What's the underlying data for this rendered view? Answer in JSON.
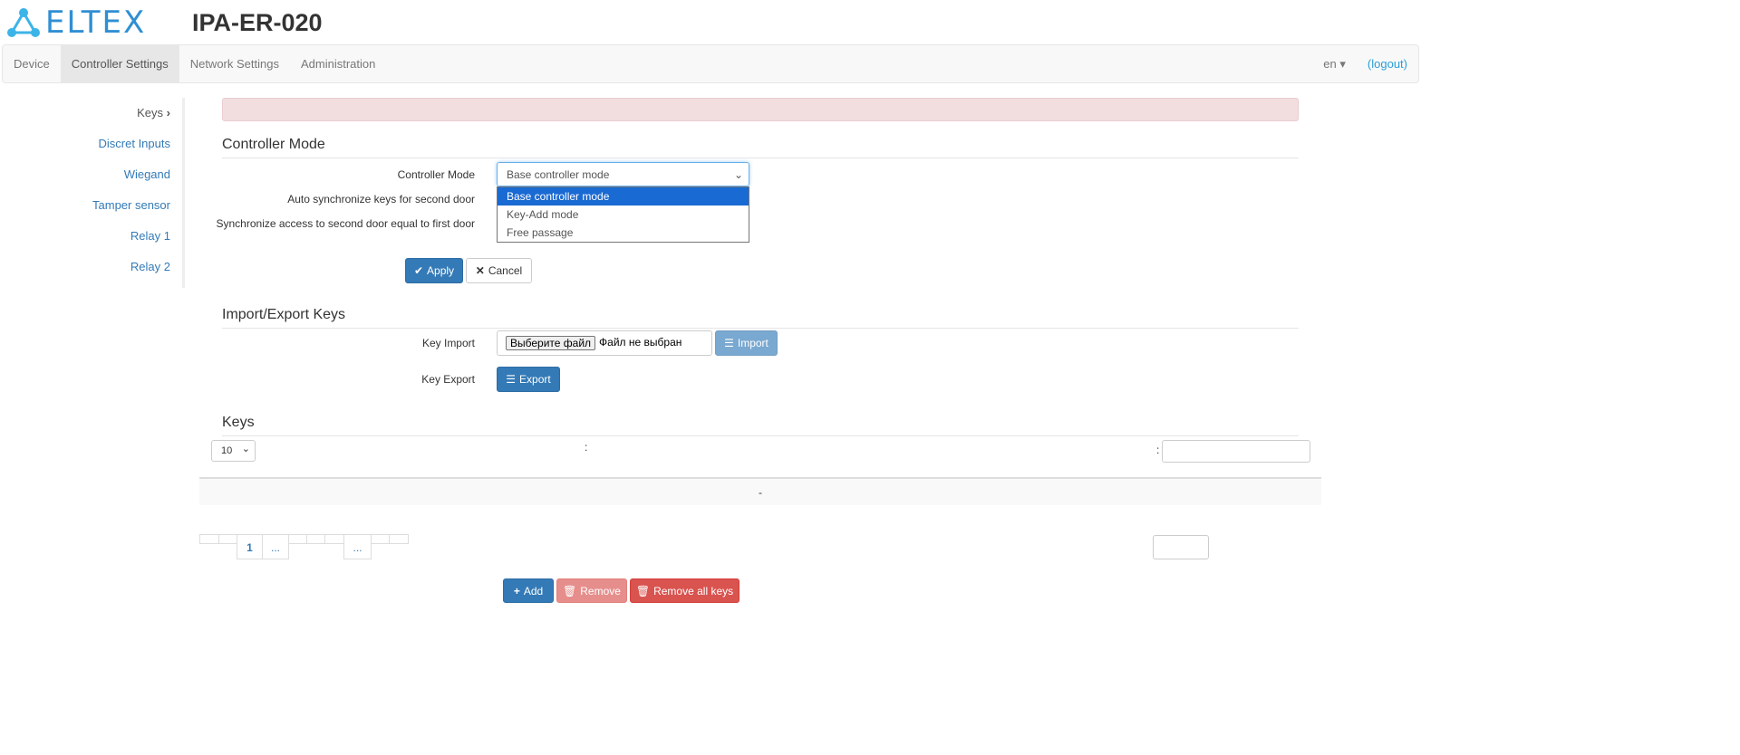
{
  "header": {
    "logo": "ELTEX",
    "device": "IPA-ER-020"
  },
  "nav": {
    "tabs": [
      "Device",
      "Controller Settings",
      "Network Settings",
      "Administration"
    ],
    "active": "Controller Settings",
    "lang": "en",
    "logout": "(logout)"
  },
  "sidebar": {
    "items": [
      "Keys",
      "Discret Inputs",
      "Wiegand",
      "Tamper sensor",
      "Relay 1",
      "Relay 2"
    ],
    "current": "Keys"
  },
  "controller": {
    "title": "Controller Mode",
    "mode_label": "Controller Mode",
    "mode_value": "Base controller mode",
    "options": [
      "Base controller mode",
      "Key-Add mode",
      "Free passage"
    ],
    "auto_sync_label": "Auto synchronize keys for second door",
    "sync_access_label": "Synchronize access to second door equal to first door",
    "apply": "Apply",
    "cancel": "Cancel"
  },
  "import_export": {
    "title": "Import/Export Keys",
    "import_label": "Key Import",
    "file_button": "Выберите файл",
    "file_status": "Файл не выбран",
    "import_button": "Import",
    "export_label": "Key Export",
    "export_button": "Export"
  },
  "keys": {
    "title": "Keys",
    "page_size": "10",
    "colon1": ":",
    "colon2": ":",
    "empty_row": "-",
    "pages": [
      "1",
      "...",
      "..."
    ],
    "add": "Add",
    "remove": "Remove",
    "remove_all": "Remove all keys"
  },
  "colors": {
    "primary": "#337ab7",
    "danger": "#d9534f",
    "logo": "#2f8fd3"
  }
}
